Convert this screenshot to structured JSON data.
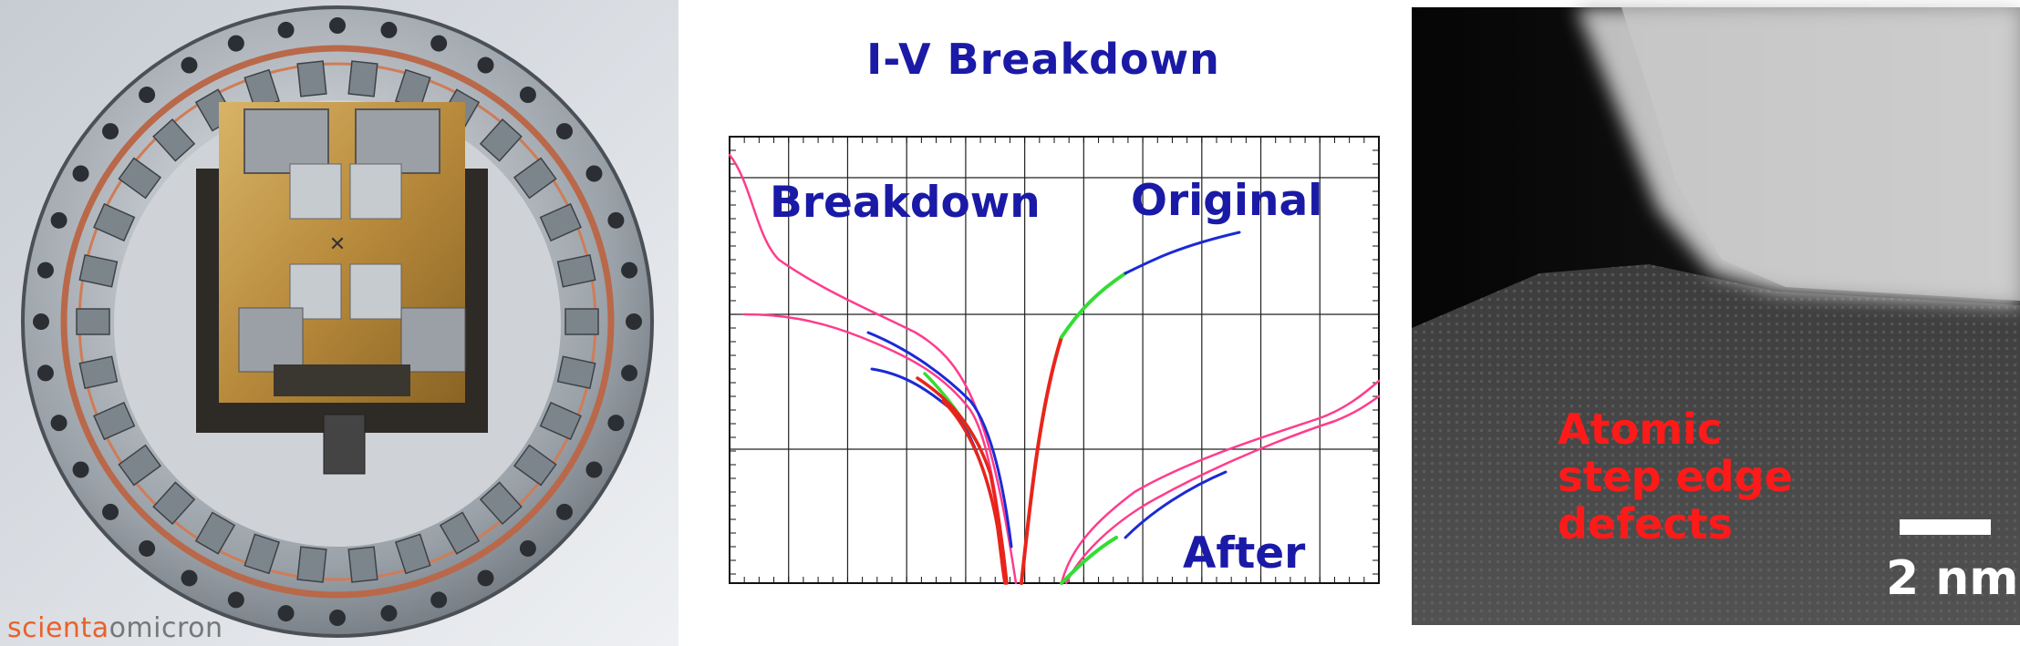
{
  "photo": {
    "brand_part1": "scienta",
    "brand_part2": "omicron",
    "brand_color": "#e8622b"
  },
  "chart": {
    "title": "I-V Breakdown",
    "labels": {
      "breakdown": "Breakdown",
      "original": "Original",
      "after": "After"
    },
    "colors": {
      "text": "#1a1aa6",
      "pink": "#ff3c8c",
      "blue": "#1a2ad6",
      "green": "#33dd33",
      "red": "#e8251a"
    },
    "grid": true
  },
  "tem": {
    "label_lines": [
      "Atomic",
      "step edge",
      "defects"
    ],
    "label_color": "#ff1a1a",
    "scale_text": "2 nm"
  }
}
